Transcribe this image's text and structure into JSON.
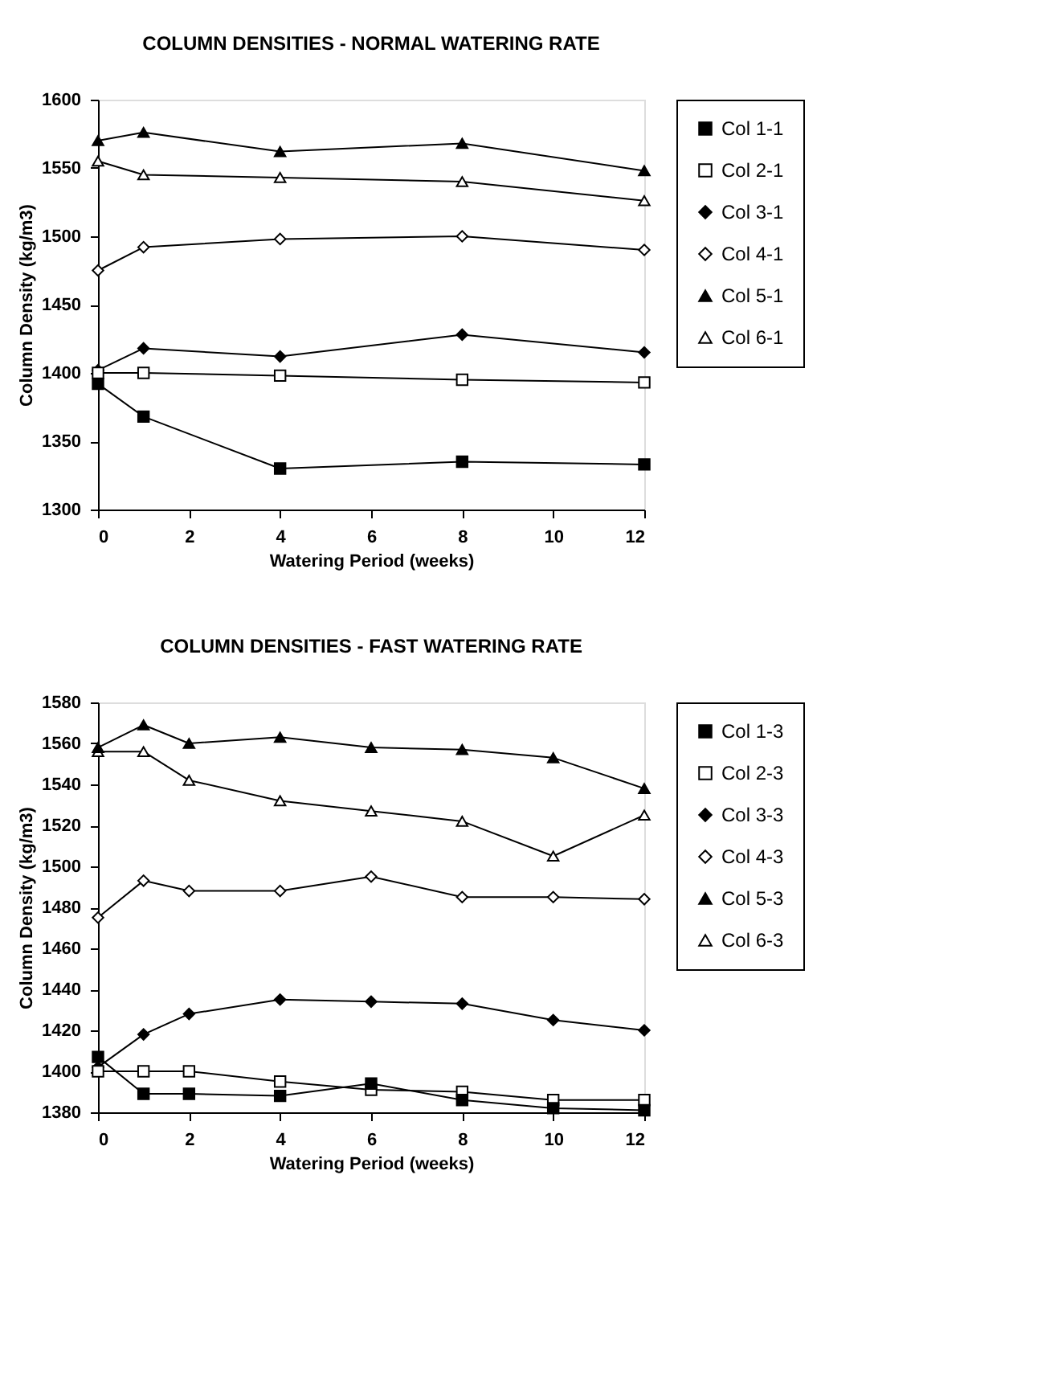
{
  "chart_data": [
    {
      "type": "line",
      "title": "COLUMN DENSITIES - NORMAL WATERING RATE",
      "xlabel": "Watering Period   (weeks)",
      "ylabel": "Column Density   (kg/m3)",
      "x": [
        0,
        1,
        4,
        8,
        12
      ],
      "xlim": [
        0,
        12
      ],
      "xticks": [
        0,
        2,
        4,
        6,
        8,
        10,
        12
      ],
      "ylim": [
        1300,
        1600
      ],
      "yticks": [
        1300,
        1350,
        1400,
        1450,
        1500,
        1550,
        1600
      ],
      "grid": false,
      "legend": "right",
      "line_style": "solid",
      "series": [
        {
          "name": "Col 1-1",
          "color": "#000000",
          "marker": "square",
          "values": [
            1392,
            1368,
            1330,
            1335,
            1333
          ]
        },
        {
          "name": "Col 2-1",
          "color": "#000000",
          "marker": "square",
          "values": [
            1400,
            1400,
            1398,
            1395,
            1393
          ]
        },
        {
          "name": "Col 3-1",
          "color": "#000000",
          "marker": "diamond",
          "values": [
            1402,
            1418,
            1412,
            1428,
            1415
          ]
        },
        {
          "name": "Col 4-1",
          "color": "#000000",
          "marker": "diamond",
          "values": [
            1475,
            1492,
            1498,
            1500,
            1490
          ]
        },
        {
          "name": "Col 5-1",
          "color": "#000000",
          "marker": "triangle",
          "values": [
            1570,
            1576,
            1562,
            1568,
            1548
          ]
        },
        {
          "name": "Col 6-1",
          "color": "#000000",
          "marker": "triangle",
          "values": [
            1555,
            1545,
            1543,
            1540,
            1526
          ]
        }
      ]
    },
    {
      "type": "line",
      "title": "COLUMN DENSITIES - FAST WATERING RATE",
      "xlabel": "Watering Period   (weeks)",
      "ylabel": "Column Density   (kg/m3)",
      "x": [
        0,
        1,
        2,
        4,
        6,
        8,
        10,
        12
      ],
      "xlim": [
        0,
        12
      ],
      "xticks": [
        0,
        2,
        4,
        6,
        8,
        10,
        12
      ],
      "ylim": [
        1380,
        1580
      ],
      "yticks": [
        1380,
        1400,
        1420,
        1440,
        1460,
        1480,
        1500,
        1520,
        1540,
        1560,
        1580
      ],
      "grid": false,
      "legend": "right",
      "line_style": "solid",
      "series": [
        {
          "name": "Col 1-3",
          "color": "#000000",
          "marker": "square",
          "values": [
            1407,
            1389,
            1389,
            1388,
            1394,
            1386,
            1382,
            1381
          ]
        },
        {
          "name": "Col 2-3",
          "color": "#000000",
          "marker": "square",
          "values": [
            1400,
            1400,
            1400,
            1395,
            1391,
            1390,
            1386,
            1386
          ]
        },
        {
          "name": "Col 3-3",
          "color": "#000000",
          "marker": "diamond",
          "values": [
            1402,
            1418,
            1428,
            1435,
            1434,
            1433,
            1425,
            1420
          ]
        },
        {
          "name": "Col 4-3",
          "color": "#000000",
          "marker": "diamond",
          "values": [
            1475,
            1493,
            1488,
            1488,
            1495,
            1485,
            1485,
            1484
          ]
        },
        {
          "name": "Col 5-3",
          "color": "#000000",
          "marker": "triangle",
          "values": [
            1558,
            1569,
            1560,
            1563,
            1558,
            1557,
            1553,
            1538
          ]
        },
        {
          "name": "Col 6-3",
          "color": "#000000",
          "marker": "triangle",
          "values": [
            1556,
            1556,
            1542,
            1532,
            1527,
            1522,
            1505,
            1525
          ]
        }
      ]
    }
  ]
}
